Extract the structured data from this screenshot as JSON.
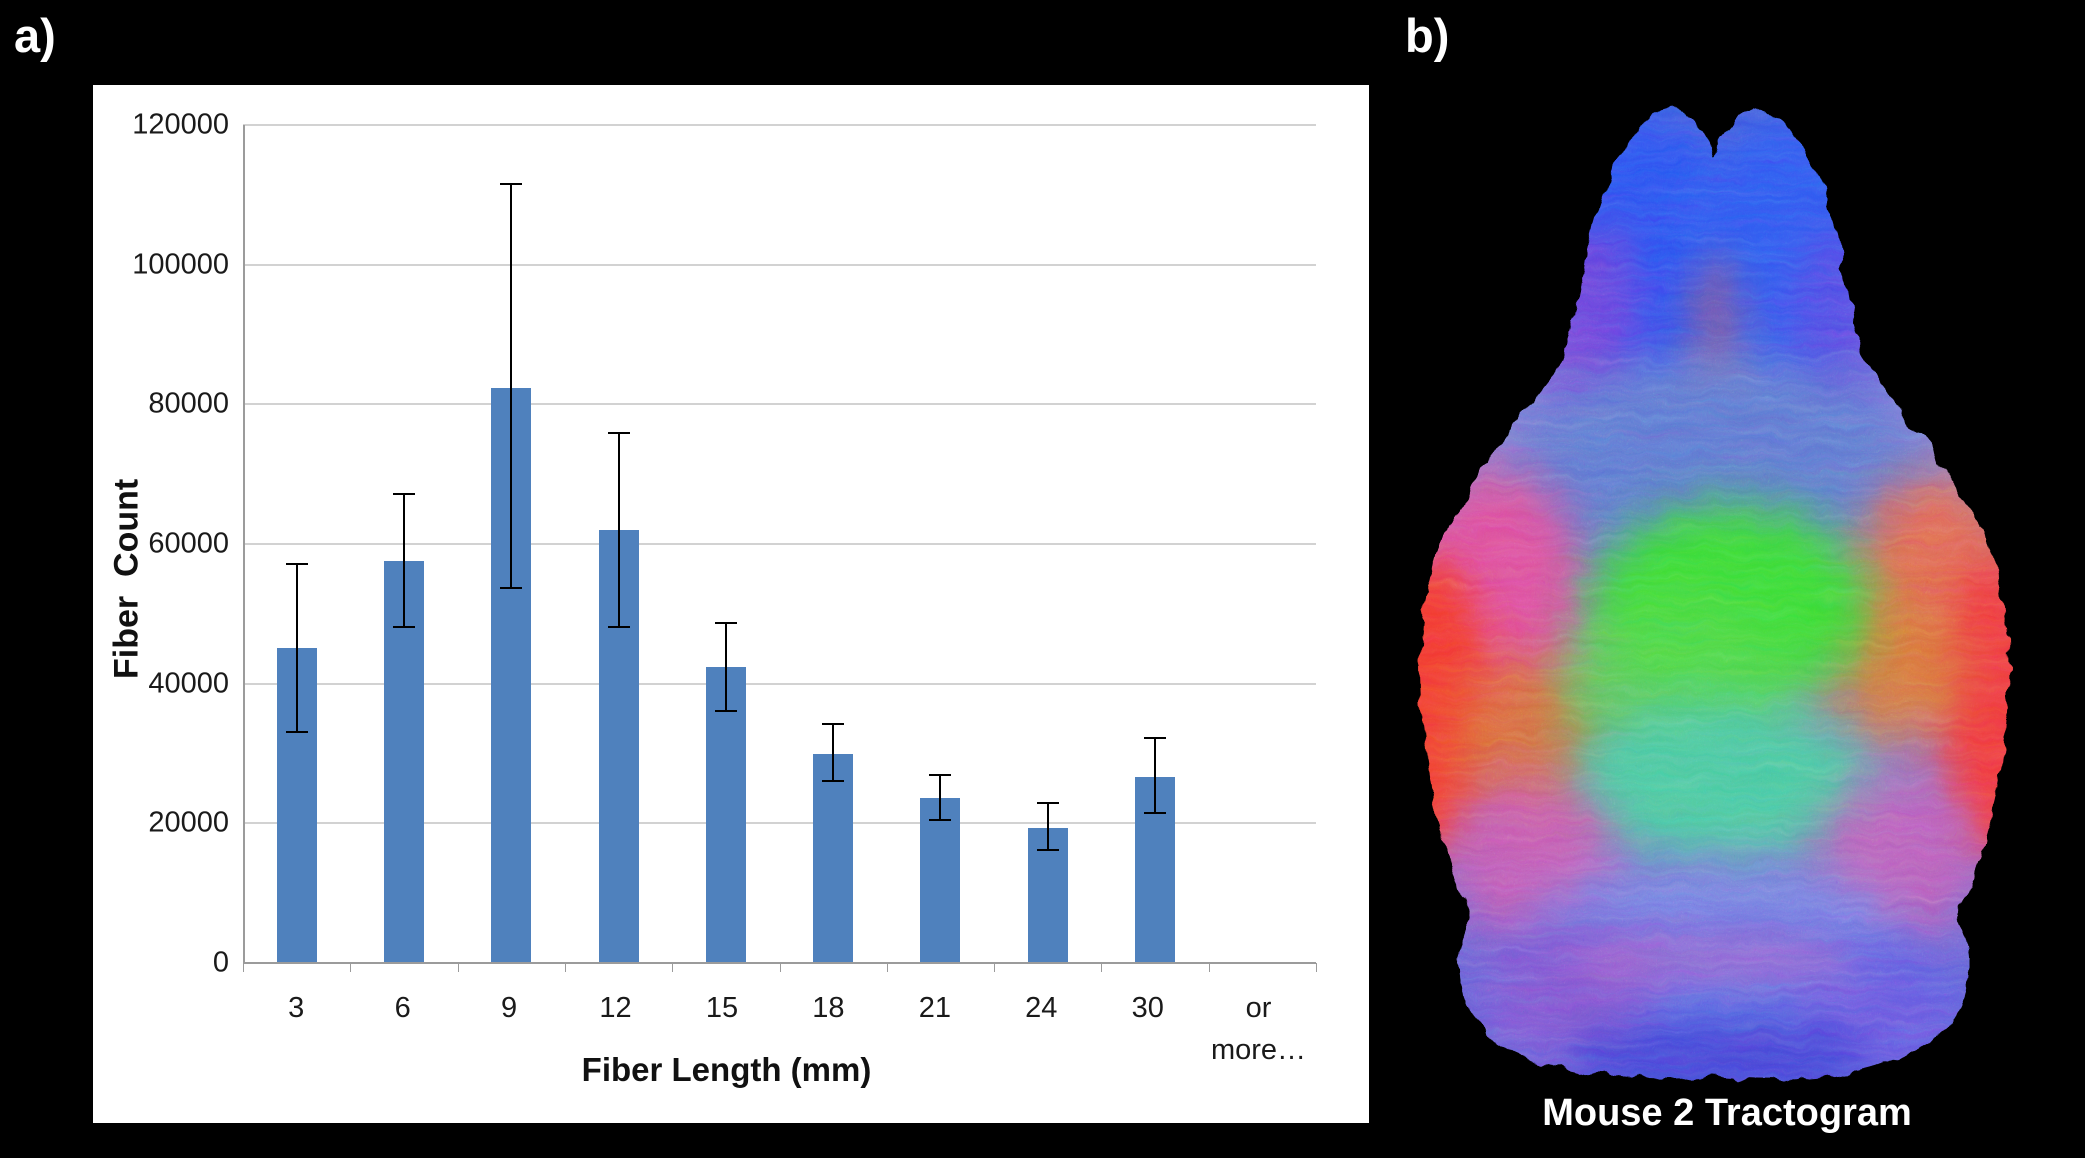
{
  "panels": {
    "a": {
      "label": "a)"
    },
    "b": {
      "label": "b)"
    }
  },
  "chart_data": {
    "type": "bar",
    "title": "",
    "categories": [
      "3",
      "6",
      "9",
      "12",
      "15",
      "18",
      "21",
      "24",
      "30",
      "or more…"
    ],
    "values": [
      45100,
      57600,
      82400,
      62000,
      42400,
      30000,
      23700,
      19400,
      26700,
      0
    ],
    "error_up": [
      57300,
      67300,
      111700,
      76100,
      48900,
      34300,
      27100,
      23000,
      32300,
      null
    ],
    "error_down": [
      33000,
      48000,
      53600,
      48000,
      36000,
      25900,
      20400,
      16000,
      21400,
      null
    ],
    "xlabel": "Fiber Length (mm)",
    "ylabel": "Fiber  Count",
    "ylim": [
      0,
      120000
    ],
    "ytick_step": 20000,
    "grid": true,
    "legend_position": "none",
    "bar_color": "#4F81BD",
    "gridline_color": "#A6A6A6",
    "axis_color": "#9B9B9B",
    "error_bar_color": "#000000",
    "background": "#FFFFFF"
  },
  "tractogram": {
    "caption": "Mouse 2 Tractogram",
    "colors": {
      "olfactory_bulb_blue": "#2B52EE",
      "bulb_fringe_purple": "#7A3FD8",
      "cortex_slate_blue": "#5F7AD2",
      "lateral_red": "#F23A33",
      "shoulder_magenta": "#DD4F9E",
      "shoulder_salmon": "#E06A55",
      "orange_patch": "#E06E2E",
      "central_green": "#3BDC35",
      "central_teal": "#4CC9A2",
      "waist_periwinkle": "#7E88E2",
      "cerebellum_blue": "#5A73E6",
      "cerebellum_purple": "#8852CF",
      "brainstem_indigo": "#4443D6",
      "background": "#000000"
    }
  }
}
